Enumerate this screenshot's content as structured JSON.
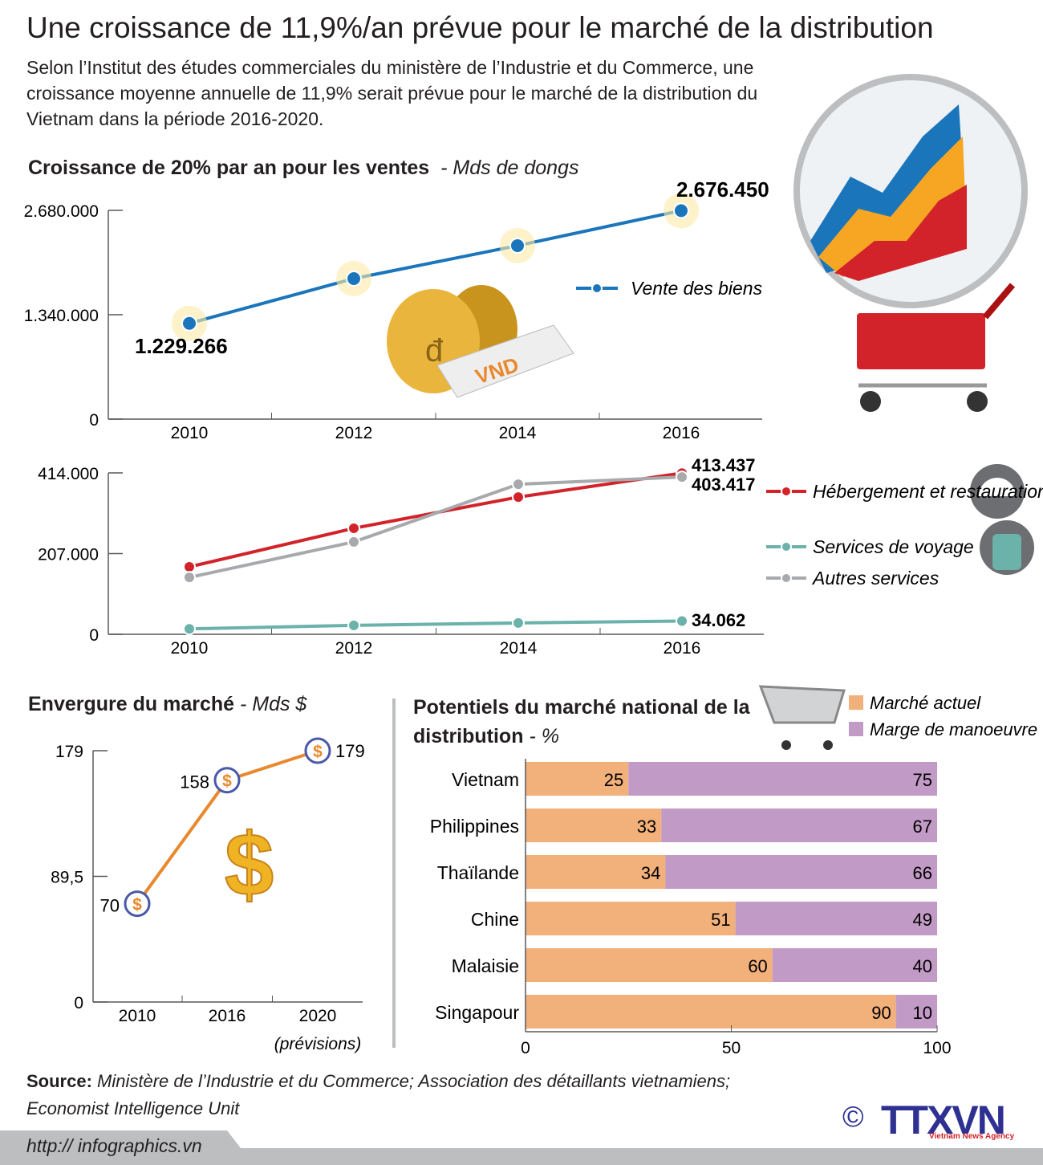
{
  "title": "Une croissance de 11,9%/an prévue pour le marché de la distribution",
  "intro": "Selon l’Institut des études commerciales du ministère de l’Industrie et du Commerce, une croissance moyenne annuelle de 11,9% serait prévue pour le marché de la distribution du Vietnam dans la période 2016-2020.",
  "colors": {
    "blue": "#1a75bb",
    "red": "#d2232a",
    "teal": "#6ab2aa",
    "gray": "#a7a9ac",
    "orange": "#e8892e",
    "peach": "#f2b07a",
    "lilac": "#c29ac6",
    "axis": "#58595b"
  },
  "chart_data": [
    {
      "type": "line",
      "title": "Croissance de 20% par an pour les ventes",
      "unit": "- Mds de dongs",
      "x": [
        "2010",
        "2012",
        "2014",
        "2016"
      ],
      "yticks": [
        "0",
        "1.340.000",
        "2.680.000"
      ],
      "ylim": [
        0,
        2680000
      ],
      "series": [
        {
          "name": "Vente des biens",
          "values": [
            1229266,
            1804000,
            2227000,
            2676450
          ],
          "color": "#1a75bb",
          "labels": [
            "1.229.266",
            "",
            "",
            "2.676.450"
          ]
        }
      ],
      "legend": "right"
    },
    {
      "type": "line",
      "x": [
        "2010",
        "2012",
        "2014",
        "2016"
      ],
      "yticks": [
        "0",
        "207.000",
        "414.000"
      ],
      "ylim": [
        0,
        414000
      ],
      "series": [
        {
          "name": "Hébergement et restauration",
          "values": [
            173000,
            272000,
            352000,
            413437
          ],
          "color": "#d2232a",
          "labels": [
            "",
            "",
            "",
            "413.437"
          ]
        },
        {
          "name": "Services de voyage",
          "values": [
            14000,
            23000,
            29000,
            34062
          ],
          "color": "#6ab2aa",
          "labels": [
            "",
            "",
            "",
            "34.062"
          ]
        },
        {
          "name": "Autres services",
          "values": [
            146000,
            237000,
            385000,
            403417
          ],
          "color": "#a7a9ac",
          "labels": [
            "",
            "",
            "",
            "403.417"
          ]
        }
      ],
      "legend": "right"
    },
    {
      "type": "line",
      "title": "Envergure du marché",
      "unit": "- Mds $",
      "x": [
        "2010",
        "2016",
        "2020"
      ],
      "x_note": "(prévisions)",
      "yticks": [
        "0",
        "89,5",
        "179"
      ],
      "ylim": [
        0,
        179
      ],
      "series": [
        {
          "values": [
            70,
            158,
            179
          ],
          "color": "#e8892e",
          "labels": [
            "70",
            "158",
            "179"
          ]
        }
      ],
      "marker": "$"
    },
    {
      "type": "bar",
      "stacked": true,
      "orientation": "horizontal",
      "title": "Potentiels du marché national de la distribution",
      "unit": "- %",
      "categories": [
        "Vietnam",
        "Philippines",
        "Thaïlande",
        "Chine",
        "Malaisie",
        "Singapour"
      ],
      "series": [
        {
          "name": "Marché actuel",
          "values": [
            25,
            33,
            34,
            51,
            60,
            90
          ],
          "color": "#f2b07a"
        },
        {
          "name": "Marge de manoeuvre",
          "values": [
            75,
            67,
            66,
            49,
            40,
            10
          ],
          "color": "#c29ac6"
        }
      ],
      "xticks": [
        "0",
        "50",
        "100"
      ],
      "xlim": [
        0,
        100
      ],
      "legend": "top-right"
    }
  ],
  "source_label": "Source:",
  "source_text": " Ministère de l’Industrie et du Commerce; Association des détaillants vietnamiens; Economist Intelligence Unit",
  "url": "http:// infographics.vn",
  "logo": {
    "copyright": "©",
    "name": "TTXVN",
    "tagline": "Vietnam News Agency"
  },
  "illustrations": {
    "money_bag_text": "VND",
    "dong_symbol": "đ"
  }
}
